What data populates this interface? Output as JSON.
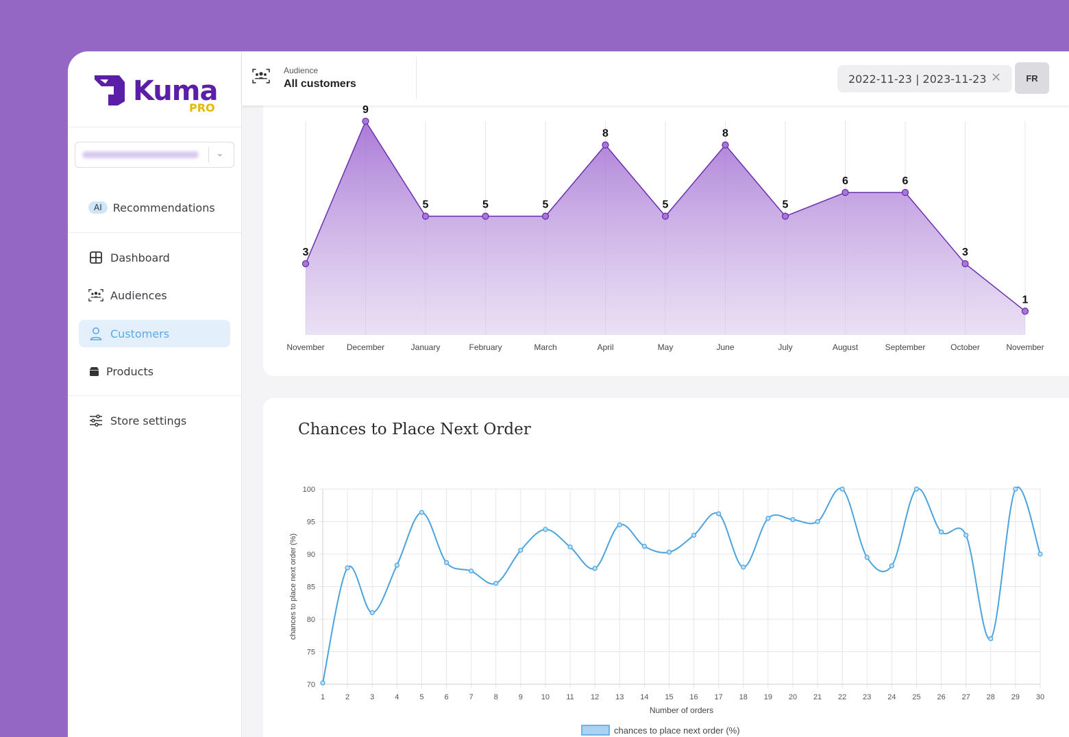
{
  "brand": {
    "name": "Kuma",
    "tier": "PRO"
  },
  "sidebar": {
    "recommendations": {
      "badge": "AI",
      "label": "Recommendations"
    },
    "items": [
      {
        "label": "Dashboard",
        "icon": "dashboard-icon"
      },
      {
        "label": "Audiences",
        "icon": "audiences-icon"
      },
      {
        "label": "Customers",
        "icon": "user-icon",
        "active": true
      },
      {
        "label": "Products",
        "icon": "box-icon"
      },
      {
        "label": "Store settings",
        "icon": "sliders-icon"
      }
    ]
  },
  "topbar": {
    "audience_label": "Audience",
    "audience_value": "All customers",
    "date_range": "2022-11-23 | 2023-11-23",
    "language": "FR"
  },
  "cards": {
    "chances_title": "Chances to Place Next Order"
  },
  "colors": {
    "accent_purple": "#8a4fc4",
    "accent_blue": "#4aa3df",
    "active_bg": "#e3f0fb"
  },
  "chart_data": [
    {
      "type": "area",
      "categories": [
        "November",
        "December",
        "January",
        "February",
        "March",
        "April",
        "May",
        "June",
        "July",
        "August",
        "September",
        "October",
        "November"
      ],
      "values": [
        3,
        9,
        5,
        5,
        5,
        8,
        5,
        8,
        5,
        6,
        6,
        3,
        1
      ],
      "data_labels": true,
      "grid": "vertical"
    },
    {
      "type": "line",
      "x": [
        1,
        2,
        3,
        4,
        5,
        6,
        7,
        8,
        9,
        10,
        11,
        12,
        13,
        14,
        15,
        16,
        17,
        18,
        19,
        20,
        21,
        22,
        23,
        24,
        25,
        26,
        27,
        28,
        29,
        30
      ],
      "series": [
        {
          "name": "chances to place next order (%)",
          "values": [
            70.2,
            87.9,
            81.0,
            88.3,
            96.4,
            88.7,
            87.4,
            85.5,
            90.6,
            93.8,
            91.1,
            87.8,
            94.5,
            91.2,
            90.3,
            92.9,
            96.2,
            88.0,
            95.5,
            95.3,
            95.0,
            100,
            89.5,
            88.2,
            100,
            93.4,
            92.9,
            77.0,
            100,
            90.0
          ]
        }
      ],
      "xlabel": "Number of orders",
      "ylabel": "chances to place next order (%)",
      "ylim": [
        70,
        100
      ],
      "yticks": [
        70,
        75,
        80,
        85,
        90,
        95,
        100
      ],
      "legend": "bottom",
      "grid": true
    }
  ]
}
